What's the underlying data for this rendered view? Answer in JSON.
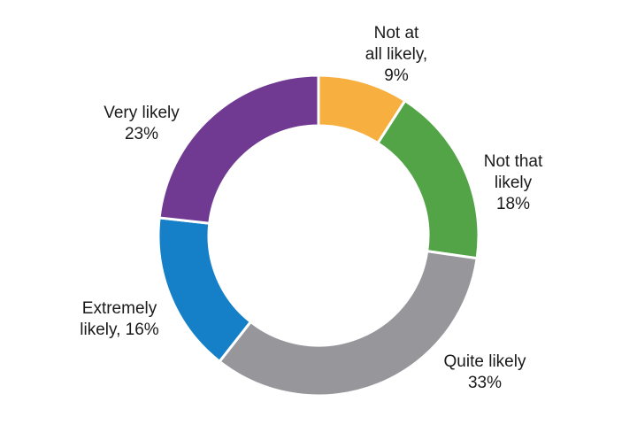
{
  "chart_data": {
    "type": "pie",
    "variant": "donut",
    "title": "",
    "legend": "none",
    "slices": [
      {
        "label_lines": [
          "Not at",
          "all likely,",
          "9%"
        ],
        "value": 9,
        "color": "#F7AF3F"
      },
      {
        "label_lines": [
          "Not that",
          "likely",
          "18%"
        ],
        "value": 18,
        "color": "#52A447"
      },
      {
        "label_lines": [
          "Quite likely",
          "33%"
        ],
        "value": 33,
        "color": "#97979B"
      },
      {
        "label_lines": [
          "Extremely",
          "likely, 16%"
        ],
        "value": 16,
        "color": "#1580C7"
      },
      {
        "label_lines": [
          "Very likely",
          "23%"
        ],
        "value": 23,
        "color": "#703A92"
      }
    ]
  }
}
